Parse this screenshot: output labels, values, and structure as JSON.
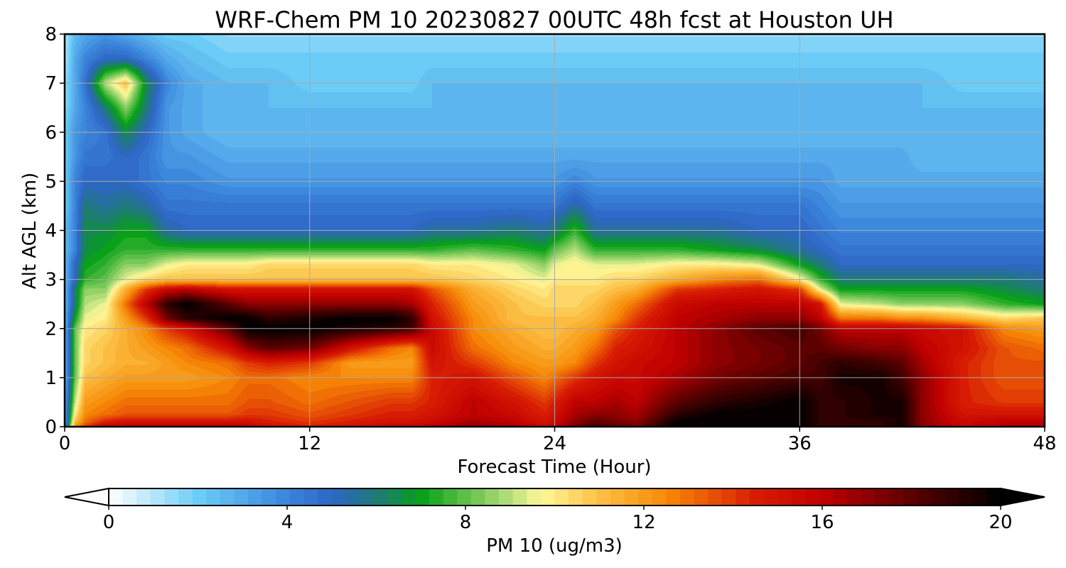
{
  "chart_data": {
    "type": "heatmap",
    "title": "WRF-Chem PM 10  20230827 00UTC 48h fcst at Houston UH",
    "xlabel": "Forecast Time (Hour)",
    "ylabel": "Alt AGL (km)",
    "xlim": [
      0,
      48
    ],
    "ylim": [
      0,
      8
    ],
    "x_ticks": [
      "0",
      "12",
      "24",
      "36",
      "48"
    ],
    "y_ticks": [
      "0",
      "1",
      "2",
      "3",
      "4",
      "5",
      "6",
      "7",
      "8"
    ],
    "grid": true,
    "colorbar": {
      "label": "PM 10  (ug/m3)",
      "range": [
        0,
        20
      ],
      "ticks": [
        "0",
        "4",
        "8",
        "12",
        "16",
        "20"
      ],
      "extend": "both",
      "stops": [
        {
          "v": 0,
          "c": "#ffffff"
        },
        {
          "v": 2,
          "c": "#6ccdf7"
        },
        {
          "v": 4,
          "c": "#3a85dc"
        },
        {
          "v": 5,
          "c": "#2f66c6"
        },
        {
          "v": 6,
          "c": "#1f7a78"
        },
        {
          "v": 7,
          "c": "#06a017"
        },
        {
          "v": 9,
          "c": "#b8df7c"
        },
        {
          "v": 9.7,
          "c": "#fff89a"
        },
        {
          "v": 11,
          "c": "#fbbf45"
        },
        {
          "v": 12.5,
          "c": "#f78a06"
        },
        {
          "v": 14.5,
          "c": "#d81d04"
        },
        {
          "v": 16,
          "c": "#c00000"
        },
        {
          "v": 18,
          "c": "#5a0000"
        },
        {
          "v": 20,
          "c": "#000000"
        }
      ]
    },
    "x_hours": [
      0,
      0.5,
      1,
      2,
      3,
      4,
      5,
      6,
      8,
      9,
      10,
      12,
      14,
      16,
      17,
      18,
      20,
      22,
      23.5,
      24,
      25,
      26,
      27,
      28,
      30,
      32,
      34,
      36,
      37,
      38,
      40,
      41,
      42,
      44,
      46,
      48
    ],
    "z_km": [
      0,
      0.1,
      0.25,
      0.5,
      1,
      1.3,
      1.6,
      2,
      2.2,
      2.5,
      2.8,
      3,
      3.3,
      3.6,
      4,
      4.5,
      5,
      5.5,
      6,
      6.5,
      7,
      7.5,
      8
    ],
    "series": [
      {
        "x_hour": 0,
        "values": [
          4,
          3,
          3,
          3,
          2.5,
          2.5,
          2.5,
          2.5,
          2.5,
          2.5,
          2.5,
          2.5,
          2.5,
          2.5,
          2.5,
          2,
          2,
          2,
          2,
          1.5,
          1.5,
          1,
          1
        ]
      },
      {
        "x_hour": 0.5,
        "values": [
          12,
          11,
          10,
          9,
          8,
          8,
          8,
          8,
          7,
          6,
          6,
          5,
          5,
          4,
          4,
          4,
          4,
          3.5,
          3.5,
          3,
          3,
          3,
          2.5
        ]
      },
      {
        "x_hour": 1,
        "values": [
          14,
          13,
          12.5,
          12,
          11,
          10.5,
          10.5,
          10,
          9.5,
          9,
          8.5,
          7.5,
          7,
          6.5,
          6.5,
          6,
          5,
          4.5,
          4,
          4,
          4.5,
          4,
          3
        ]
      },
      {
        "x_hour": 2,
        "values": [
          16,
          14.5,
          13,
          12.5,
          11.5,
          11,
          11,
          10.5,
          10,
          9.5,
          8.5,
          8,
          7.5,
          7,
          6.5,
          5.5,
          5,
          4.5,
          4.5,
          6,
          9,
          5,
          3.5
        ]
      },
      {
        "x_hour": 3,
        "values": [
          16,
          15,
          13.5,
          13,
          12,
          11.5,
          11.5,
          11.5,
          12,
          13,
          11.5,
          9.5,
          8.5,
          7.5,
          7,
          6,
          5,
          5,
          6.5,
          8.5,
          11,
          5,
          3
        ]
      },
      {
        "x_hour": 4,
        "values": [
          16,
          15,
          13.5,
          13,
          12,
          11.5,
          12,
          12.5,
          14,
          16,
          14,
          10.5,
          8.5,
          7.5,
          7,
          5.5,
          4.5,
          4.5,
          5,
          6,
          6.5,
          4,
          2.5
        ]
      },
      {
        "x_hour": 5,
        "values": [
          16,
          15,
          13.5,
          13,
          12,
          12,
          12.5,
          14,
          17.5,
          19,
          15.5,
          11,
          9.5,
          7.5,
          5.5,
          4.5,
          4,
          3.5,
          3.5,
          3.5,
          4,
          3,
          2
        ]
      },
      {
        "x_hour": 6,
        "values": [
          16,
          15,
          13.5,
          13,
          12,
          12.5,
          13,
          15,
          19,
          20,
          16,
          11,
          10,
          7.5,
          5,
          4.5,
          4,
          3.5,
          3,
          3,
          3,
          2.5,
          2
        ]
      },
      {
        "x_hour": 8,
        "values": [
          16,
          15,
          13.5,
          13,
          12.5,
          13,
          15,
          18,
          20,
          18,
          15,
          11,
          10,
          7.5,
          5,
          4.5,
          3.5,
          3,
          2.5,
          2.5,
          2.5,
          2,
          1.5
        ]
      },
      {
        "x_hour": 9,
        "values": [
          16,
          15,
          14,
          13.5,
          13,
          14,
          17,
          20,
          20,
          17,
          15,
          11,
          10,
          7.5,
          5,
          4.5,
          3.5,
          3,
          2.5,
          2.5,
          2.5,
          2,
          1.5
        ]
      },
      {
        "x_hour": 10,
        "values": [
          15,
          14.5,
          14,
          13.5,
          13,
          14.5,
          18,
          20,
          19,
          17,
          15,
          11,
          10.5,
          7.5,
          5,
          4.5,
          3.5,
          3,
          2.5,
          2.5,
          2.5,
          2,
          1.5
        ]
      },
      {
        "x_hour": 12,
        "values": [
          14.5,
          14,
          13.5,
          13,
          12.5,
          14,
          17.5,
          20,
          19.5,
          17,
          15,
          11,
          10.5,
          7.5,
          5,
          4.5,
          3.5,
          3,
          2.5,
          2.5,
          2,
          2,
          1.5
        ]
      },
      {
        "x_hour": 14,
        "values": [
          15,
          14.5,
          14,
          13.5,
          12.5,
          12,
          15,
          19.5,
          20,
          17,
          15,
          11,
          10.5,
          7.5,
          5,
          4.5,
          3.5,
          3,
          2.5,
          2.5,
          2,
          2,
          1.5
        ]
      },
      {
        "x_hour": 16,
        "values": [
          15.5,
          15,
          14.5,
          14,
          12.5,
          12,
          13,
          19,
          20,
          17,
          15,
          11,
          10.5,
          7.5,
          5,
          4.5,
          3.5,
          3,
          2.5,
          2.5,
          2,
          2,
          1.5
        ]
      },
      {
        "x_hour": 17,
        "values": [
          15.5,
          15,
          14.5,
          14,
          12.5,
          12,
          12.5,
          18.5,
          19,
          16.5,
          15,
          11,
          10.5,
          7.5,
          5,
          4.5,
          3.5,
          3,
          2.5,
          2.5,
          2,
          2,
          1.5
        ]
      },
      {
        "x_hour": 18,
        "values": [
          16,
          15.5,
          15,
          14.5,
          14.5,
          15,
          15.5,
          15.5,
          15,
          14.5,
          13.5,
          11,
          10,
          7.5,
          5.5,
          4.5,
          3.5,
          3,
          2.5,
          2.5,
          2.5,
          2,
          1.5
        ]
      },
      {
        "x_hour": 20,
        "values": [
          17,
          16.5,
          16,
          16,
          15,
          14,
          13,
          12.5,
          12.5,
          12,
          11.5,
          10.5,
          10,
          8,
          5.5,
          4.5,
          3.5,
          3,
          2.5,
          2.5,
          2.5,
          2,
          1.5
        ]
      },
      {
        "x_hour": 22,
        "values": [
          16.5,
          16,
          15.5,
          15,
          13.5,
          12.5,
          12,
          11.5,
          11,
          11,
          10.5,
          10,
          9.5,
          7.5,
          6,
          4.5,
          3.5,
          3,
          2.5,
          2.5,
          2.5,
          2,
          1.5
        ]
      },
      {
        "x_hour": 23.5,
        "values": [
          15.5,
          15,
          14.5,
          14,
          12.5,
          12,
          11.5,
          11,
          11,
          10.5,
          10,
          9.5,
          8.5,
          7,
          5.5,
          4.5,
          3.5,
          3,
          2.5,
          2.5,
          2.5,
          2,
          1.5
        ]
      },
      {
        "x_hour": 24,
        "values": [
          16,
          15.5,
          15,
          14.5,
          13,
          12,
          11.5,
          11,
          11,
          10.5,
          10.5,
          10,
          9.5,
          8,
          6,
          4.5,
          3.5,
          3,
          2.5,
          2.5,
          2.5,
          2,
          1.5
        ]
      },
      {
        "x_hour": 25,
        "values": [
          17.5,
          17,
          16.5,
          16,
          14,
          12.5,
          12,
          11.5,
          11,
          10.5,
          10.5,
          10,
          10,
          9,
          7.5,
          5.5,
          4,
          3,
          2.5,
          2.5,
          2.5,
          2,
          1.5
        ]
      },
      {
        "x_hour": 26,
        "values": [
          18.5,
          18,
          17,
          16,
          15,
          14,
          13,
          12,
          11.5,
          11,
          10.5,
          10,
          9.5,
          7.5,
          5.5,
          4.5,
          3.5,
          3,
          2.5,
          2.5,
          2.5,
          2,
          1.5
        ]
      },
      {
        "x_hour": 27,
        "values": [
          18,
          17.5,
          17,
          16.5,
          15.5,
          15,
          14.5,
          13.5,
          12.5,
          12,
          11,
          10.5,
          9.5,
          7.5,
          5.5,
          4.5,
          3.5,
          3,
          2.5,
          2.5,
          2.5,
          2,
          1.5
        ]
      },
      {
        "x_hour": 28,
        "values": [
          17.5,
          17,
          16.5,
          16,
          15.5,
          15.5,
          15,
          14.5,
          14,
          13,
          11.5,
          10.5,
          9.5,
          7.5,
          5.5,
          4.5,
          3.5,
          3,
          2.5,
          2.5,
          2.5,
          2,
          1.5
        ]
      },
      {
        "x_hour": 30,
        "values": [
          20,
          20,
          19,
          18,
          16.5,
          16,
          16,
          16,
          16,
          15.5,
          14,
          11.5,
          10,
          7.5,
          5.5,
          4.5,
          3.5,
          3,
          2.5,
          2.5,
          2.5,
          2,
          1.5
        ]
      },
      {
        "x_hour": 32,
        "values": [
          20,
          20,
          20,
          19,
          17.5,
          17,
          17,
          17,
          16.5,
          16,
          14.5,
          12.5,
          10,
          7,
          5.5,
          4.5,
          3.5,
          3,
          2.5,
          2.5,
          2.5,
          2,
          1.5
        ]
      },
      {
        "x_hour": 34,
        "values": [
          20,
          20,
          20,
          19.5,
          18,
          17.5,
          17.5,
          18,
          17,
          16,
          15,
          13,
          9.5,
          6.5,
          5,
          4.5,
          3.5,
          3,
          2.5,
          2.5,
          2.5,
          2,
          1.5
        ]
      },
      {
        "x_hour": 36,
        "values": [
          20,
          20,
          20,
          20,
          18.5,
          18,
          18,
          18.5,
          17,
          16,
          14,
          10,
          7,
          5.5,
          5,
          4.5,
          3.5,
          3,
          2.5,
          2.5,
          2.5,
          2,
          1.5
        ]
      },
      {
        "x_hour": 37,
        "values": [
          19,
          19,
          19,
          19,
          18.5,
          18.5,
          18,
          17.5,
          16,
          15,
          9.5,
          7.5,
          6,
          5,
          4.5,
          4,
          3.5,
          3,
          2.5,
          2.5,
          2.5,
          2,
          1.5
        ]
      },
      {
        "x_hour": 38,
        "values": [
          19,
          19,
          19,
          19,
          19.5,
          19,
          17.5,
          16,
          13,
          9.5,
          7,
          6,
          5,
          4.5,
          4,
          3.5,
          3,
          3,
          2.5,
          2.5,
          2.5,
          2,
          1.5
        ]
      },
      {
        "x_hour": 40,
        "values": [
          19,
          19,
          19.5,
          19.5,
          19.5,
          18.5,
          17,
          16,
          13,
          9,
          7,
          6,
          5,
          4.5,
          4,
          3.5,
          3,
          3,
          2.5,
          2.5,
          2.5,
          2,
          1.5
        ]
      },
      {
        "x_hour": 41,
        "values": [
          19.5,
          19.5,
          19.5,
          19.5,
          18.5,
          18,
          17,
          16,
          12.5,
          8.5,
          7,
          6,
          5,
          4.5,
          4,
          3.5,
          3,
          3,
          2.5,
          2.5,
          2.5,
          2,
          1.5
        ]
      },
      {
        "x_hour": 42,
        "values": [
          17,
          17,
          17,
          17,
          17,
          16.5,
          16,
          15.5,
          12.5,
          8.5,
          7,
          6,
          5,
          4.5,
          4,
          3.5,
          3,
          2.5,
          2.5,
          2.5,
          2.5,
          2,
          1.5
        ]
      },
      {
        "x_hour": 44,
        "values": [
          15.5,
          15.5,
          15,
          14.5,
          14.5,
          14.5,
          15,
          15,
          11.5,
          8.5,
          7,
          6,
          5,
          4.5,
          4,
          3.5,
          3,
          2.5,
          2.5,
          2.5,
          2,
          2,
          1.5
        ]
      },
      {
        "x_hour": 46,
        "values": [
          16,
          16,
          15,
          14,
          13.5,
          13.5,
          13.5,
          12.5,
          10.5,
          7.5,
          6.5,
          6,
          5,
          4.5,
          4,
          3.5,
          3,
          2.5,
          2.5,
          2.5,
          2,
          2,
          1.5
        ]
      },
      {
        "x_hour": 48,
        "values": [
          16,
          16,
          15,
          14,
          13.5,
          13.5,
          13,
          12,
          11,
          7,
          6,
          5.5,
          5,
          4.5,
          4,
          3.5,
          3,
          2.5,
          2.5,
          2.5,
          2,
          2,
          1.5
        ]
      }
    ]
  }
}
